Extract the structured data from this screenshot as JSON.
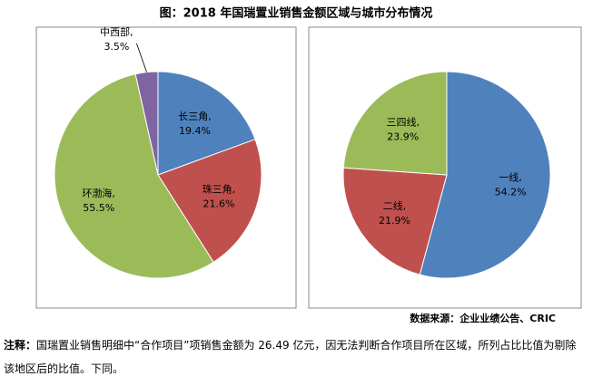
{
  "title": "图：2018 年国瑞置业销售金额区域与城市分布情况",
  "chart_data": [
    {
      "type": "pie",
      "categories": [
        "长三角,",
        "珠三角,",
        "环渤海,",
        "中西部,"
      ],
      "values": [
        19.4,
        21.6,
        55.5,
        3.5
      ],
      "value_labels": [
        "19.4%",
        "21.6%",
        "55.5%",
        "3.5%"
      ],
      "colors": [
        "#4f81bd",
        "#c0504d",
        "#9bbb59",
        "#8064a2"
      ]
    },
    {
      "type": "pie",
      "categories": [
        "一线,",
        "二线,",
        "三四线,"
      ],
      "values": [
        54.2,
        21.9,
        23.9
      ],
      "value_labels": [
        "54.2%",
        "21.9%",
        "23.9%"
      ],
      "colors": [
        "#4f81bd",
        "#c0504d",
        "#9bbb59"
      ]
    }
  ],
  "source": "数据来源：企业业绩公告、CRIC",
  "note": {
    "label": "注释：",
    "text": "国瑞置业销售明细中“合作项目”项销售金额为 26.49 亿元，因无法判断合作项目所在区域，所列占比比值为剔除该地区后的比值。下同。"
  }
}
